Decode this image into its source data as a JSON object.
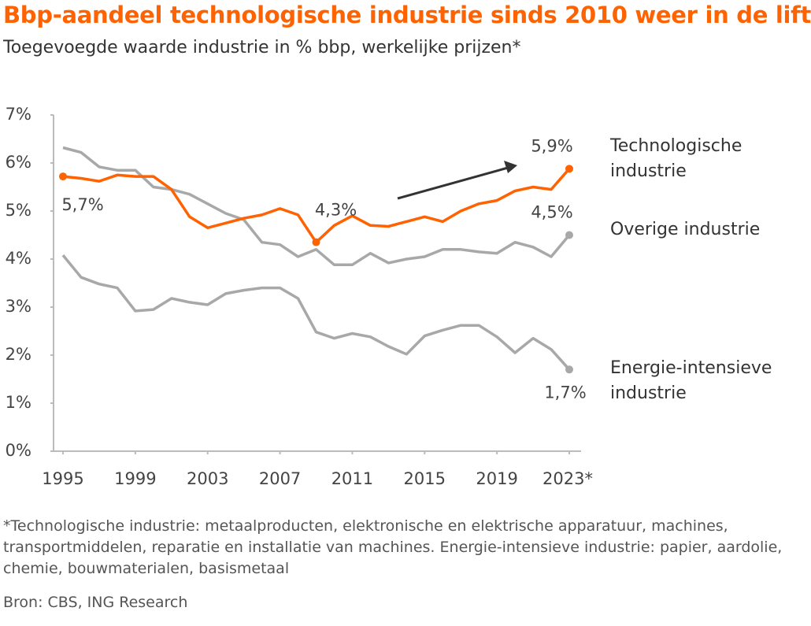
{
  "chart_data": {
    "type": "line",
    "title": "Bbp-aandeel technologische industrie sinds 2010 weer in de lift",
    "subtitle": "Toegevoegde waarde industrie in % bbp, werkelijke prijzen*",
    "x": [
      1995,
      1996,
      1997,
      1998,
      1999,
      2000,
      2001,
      2002,
      2003,
      2004,
      2005,
      2006,
      2007,
      2008,
      2009,
      2010,
      2011,
      2012,
      2013,
      2014,
      2015,
      2016,
      2017,
      2018,
      2019,
      2020,
      2021,
      2022,
      2023
    ],
    "xlim": [
      1995,
      2023
    ],
    "xticks": [
      1995,
      1999,
      2003,
      2007,
      2011,
      2015,
      2019,
      {
        "value": 2023,
        "label": "2023*"
      }
    ],
    "ylim": [
      0,
      7
    ],
    "yticks": [
      {
        "value": 0,
        "label": "0%"
      },
      {
        "value": 1,
        "label": "1%"
      },
      {
        "value": 2,
        "label": "2%"
      },
      {
        "value": 3,
        "label": "3%"
      },
      {
        "value": 4,
        "label": "4%"
      },
      {
        "value": 5,
        "label": "5%"
      },
      {
        "value": 6,
        "label": "6%"
      },
      {
        "value": 7,
        "label": "7%"
      }
    ],
    "grid": false,
    "series": [
      {
        "name": "Technologische industrie",
        "color": "#ff6200",
        "values": [
          5.72,
          5.68,
          5.62,
          5.75,
          5.72,
          5.72,
          5.45,
          4.88,
          4.65,
          4.75,
          4.85,
          4.92,
          5.05,
          4.92,
          4.35,
          4.7,
          4.9,
          4.7,
          4.68,
          4.78,
          4.88,
          4.78,
          5.0,
          5.15,
          5.22,
          5.42,
          5.5,
          5.45,
          5.88
        ],
        "value_labels": [
          "5,7%",
          null,
          null,
          null,
          null,
          null,
          null,
          null,
          null,
          null,
          null,
          null,
          null,
          null,
          "4,3%",
          null,
          null,
          null,
          null,
          null,
          null,
          null,
          null,
          null,
          null,
          null,
          null,
          null,
          "5,9%"
        ]
      },
      {
        "name": "Overige industrie",
        "color": "#a8a8a8",
        "values": [
          6.32,
          6.22,
          5.92,
          5.85,
          5.85,
          5.5,
          5.45,
          5.35,
          5.15,
          4.95,
          4.82,
          4.35,
          4.3,
          4.05,
          4.2,
          3.88,
          3.88,
          4.12,
          3.92,
          4.0,
          4.05,
          4.2,
          4.2,
          4.15,
          4.12,
          4.35,
          4.25,
          4.05,
          4.5
        ],
        "value_labels": [
          null,
          null,
          null,
          null,
          null,
          null,
          null,
          null,
          null,
          null,
          null,
          null,
          null,
          null,
          null,
          null,
          null,
          null,
          null,
          null,
          null,
          null,
          null,
          null,
          null,
          null,
          null,
          null,
          "4,5%"
        ]
      },
      {
        "name": "Energie-intensieve industrie",
        "color": "#a8a8a8",
        "values": [
          4.08,
          3.62,
          3.48,
          3.4,
          2.92,
          2.95,
          3.18,
          3.1,
          3.05,
          3.28,
          3.35,
          3.4,
          3.4,
          3.18,
          2.48,
          2.35,
          2.45,
          2.38,
          2.18,
          2.02,
          2.4,
          2.52,
          2.62,
          2.62,
          2.38,
          2.05,
          2.35,
          2.12,
          1.7
        ],
        "value_labels": [
          null,
          null,
          null,
          null,
          null,
          null,
          null,
          null,
          null,
          null,
          null,
          null,
          null,
          null,
          null,
          null,
          null,
          null,
          null,
          null,
          null,
          null,
          null,
          null,
          null,
          null,
          null,
          null,
          "1,7%"
        ]
      }
    ],
    "footnote": "*Technologische industrie: metaalproducten, elektronische en elektrische apparatuur, machines, transportmiddelen, reparatie en installatie van machines. Energie-intensieve industrie: papier, aardolie, chemie, bouwmaterialen, basismetaal",
    "source": "Bron: CBS, ING Research"
  }
}
